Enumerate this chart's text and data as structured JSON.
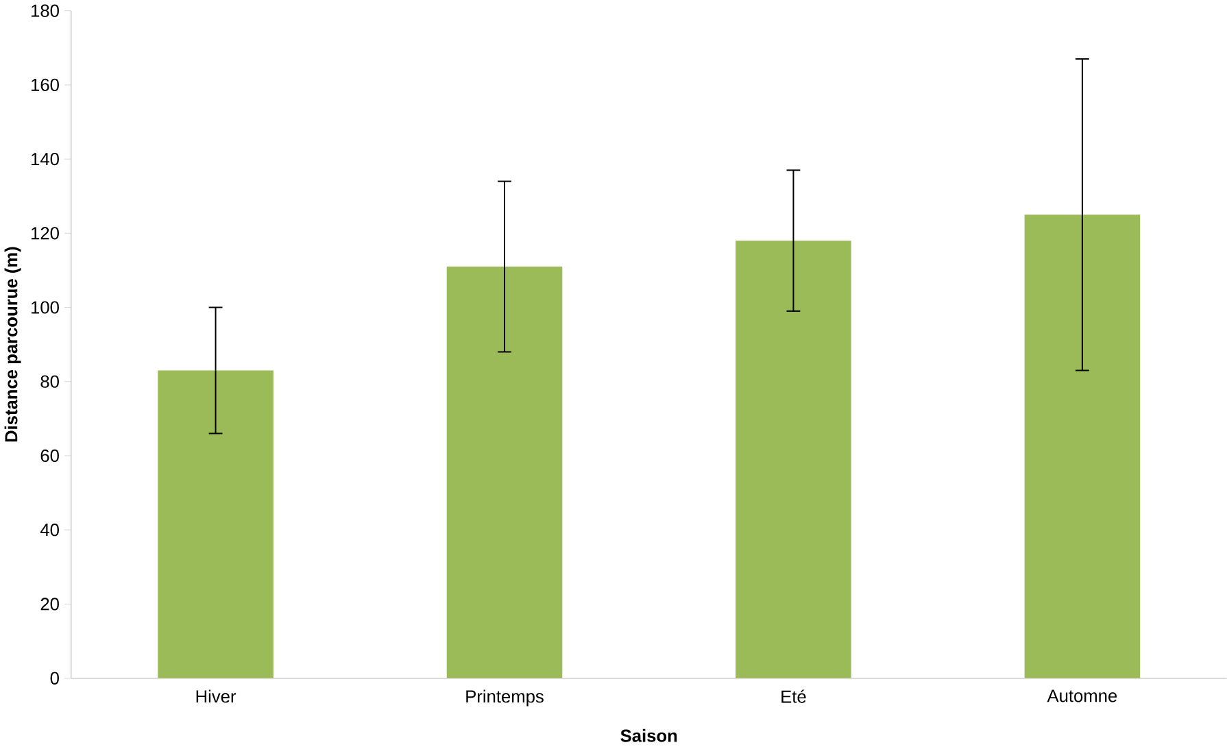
{
  "chart_data": {
    "type": "bar",
    "xlabel": "Saison",
    "ylabel": "Distance parcourue (m)",
    "categories": [
      "Hiver",
      "Printemps",
      "Eté",
      "Automne"
    ],
    "values": [
      83,
      111,
      118,
      125
    ],
    "errors": [
      17,
      23,
      19,
      42
    ],
    "color": "#9bbb59",
    "ylim": [
      0,
      180
    ],
    "yticks": [
      0,
      20,
      40,
      60,
      80,
      100,
      120,
      140,
      160,
      180
    ],
    "grid": false
  }
}
